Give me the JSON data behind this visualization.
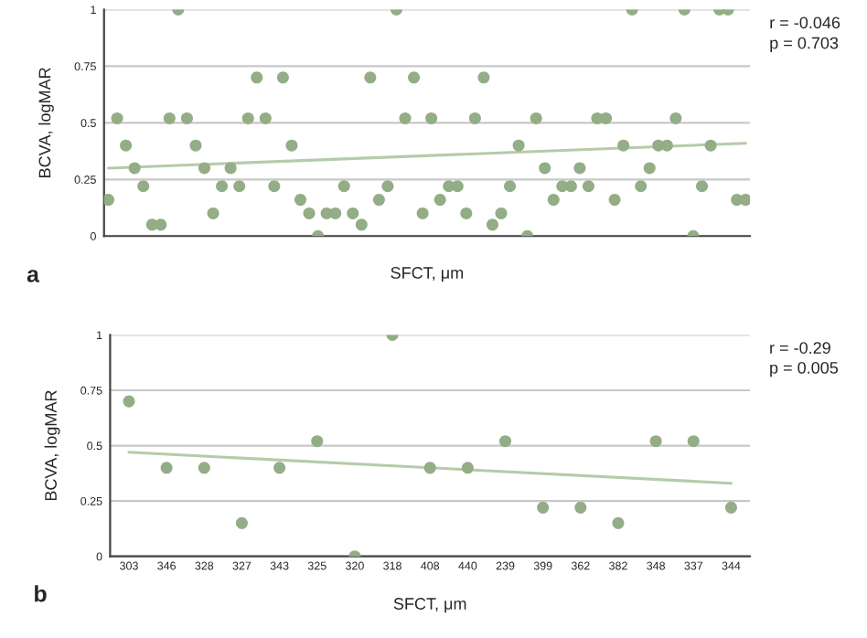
{
  "chart_data": [
    {
      "type": "scatter",
      "xlabel": "SFCT, μm",
      "ylabel": "BCVA, logMAR",
      "annotations": [
        "r = -0.046",
        "p = 0.703",
        "a"
      ],
      "categories": [
        null,
        null,
        null,
        null,
        null,
        null,
        null,
        null,
        null,
        null,
        null,
        null,
        null,
        null,
        null,
        null,
        null,
        null,
        null,
        null,
        null,
        null,
        null,
        null,
        null,
        null,
        null,
        null,
        null,
        null,
        null,
        null,
        null,
        null,
        null,
        null,
        null,
        null,
        null,
        null,
        null,
        null,
        null,
        null,
        null,
        null,
        null,
        null,
        null,
        null,
        null,
        null,
        null,
        null,
        null,
        null,
        null,
        null,
        null,
        null,
        null,
        null,
        null,
        null,
        null,
        null,
        null,
        null,
        null,
        null,
        null,
        null,
        null,
        null
      ],
      "ylim": [
        0,
        1
      ],
      "yticks": [
        0,
        0.25,
        0.5,
        0.75,
        1
      ],
      "grid": "y",
      "series": [
        {
          "marker": "circle",
          "color": "#93ad86",
          "values": [
            0.16,
            0.52,
            0.4,
            0.3,
            0.22,
            0.05,
            0.05,
            0.52,
            1,
            0.52,
            0.4,
            0.3,
            0.1,
            0.22,
            0.3,
            0.22,
            0.52,
            0.7,
            0.52,
            0.22,
            0.7,
            0.4,
            0.16,
            0.1,
            0,
            0.1,
            0.1,
            0.22,
            0.1,
            0.05,
            0.7,
            0.16,
            0.22,
            1,
            0.52,
            0.7,
            0.1,
            0.52,
            0.16,
            0.22,
            0.22,
            0.1,
            0.52,
            0.7,
            0.05,
            0.1,
            0.22,
            0.4,
            0,
            0.52,
            0.3,
            0.16,
            0.22,
            0.22,
            0.3,
            0.22,
            0.52,
            0.52,
            0.16,
            0.4,
            1,
            0.22,
            0.3,
            0.4,
            0.4,
            0.52,
            1,
            0,
            0.22,
            0.4,
            1,
            1,
            0.16,
            0.16
          ]
        },
        {
          "type": "line",
          "marker": "none",
          "color": "#b5cba9",
          "values": [
            0.3,
            null,
            null,
            null,
            null,
            null,
            null,
            null,
            null,
            null,
            null,
            null,
            null,
            null,
            null,
            null,
            null,
            null,
            null,
            null,
            null,
            null,
            null,
            null,
            null,
            null,
            null,
            null,
            null,
            null,
            null,
            null,
            null,
            null,
            null,
            null,
            null,
            null,
            null,
            null,
            null,
            null,
            null,
            null,
            null,
            null,
            null,
            null,
            null,
            null,
            null,
            null,
            null,
            null,
            null,
            null,
            null,
            null,
            null,
            null,
            null,
            null,
            null,
            null,
            null,
            null,
            null,
            null,
            null,
            null,
            null,
            null,
            null,
            0.41
          ]
        }
      ]
    },
    {
      "type": "scatter",
      "xlabel": "SFCT, μm",
      "ylabel": "BCVA, logMAR",
      "annotations": [
        "r = -0.29",
        "p = 0.005",
        "b"
      ],
      "categories": [
        "303",
        "346",
        "328",
        "327",
        "343",
        "325",
        "320",
        "318",
        "408",
        "440",
        "239",
        "399",
        "362",
        "382",
        "348",
        "337",
        "344"
      ],
      "ylim": [
        0,
        1
      ],
      "yticks": [
        0,
        0.25,
        0.5,
        0.75,
        1
      ],
      "grid": "y",
      "series": [
        {
          "marker": "circle",
          "color": "#93ad86",
          "values": [
            0.7,
            0.4,
            0.4,
            0.15,
            0.4,
            0.52,
            0,
            1,
            0.4,
            0.4,
            0.52,
            0.22,
            0.22,
            0.15,
            0.52,
            0.52,
            0.22
          ]
        },
        {
          "type": "line",
          "marker": "none",
          "color": "#b5cba9",
          "values": [
            0.47,
            null,
            null,
            null,
            null,
            null,
            null,
            null,
            null,
            null,
            null,
            null,
            null,
            null,
            null,
            null,
            0.33
          ]
        }
      ]
    }
  ]
}
